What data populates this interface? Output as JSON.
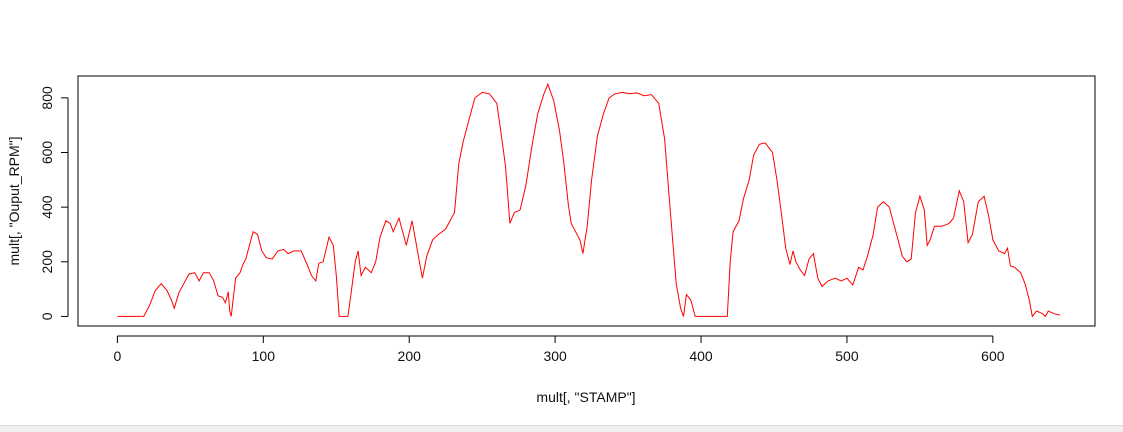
{
  "chart_data": {
    "type": "line",
    "xlabel": "mult[, \"STAMP\"]",
    "ylabel": "mult[, \"Ouput_RPM\"]",
    "xlim": [
      -27,
      670
    ],
    "ylim": [
      -35,
      880
    ],
    "x_ticks": [
      0,
      100,
      200,
      300,
      400,
      500,
      600
    ],
    "y_ticks": [
      0,
      200,
      400,
      600,
      800
    ],
    "grid": false,
    "legend": "none",
    "series_color": "#ff0000",
    "points": [
      [
        0,
        0
      ],
      [
        18,
        0
      ],
      [
        22,
        40
      ],
      [
        26,
        95
      ],
      [
        30,
        120
      ],
      [
        34,
        95
      ],
      [
        37,
        60
      ],
      [
        39,
        30
      ],
      [
        42,
        85
      ],
      [
        46,
        125
      ],
      [
        49,
        155
      ],
      [
        53,
        160
      ],
      [
        56,
        130
      ],
      [
        59,
        160
      ],
      [
        63,
        160
      ],
      [
        66,
        130
      ],
      [
        69,
        75
      ],
      [
        72,
        70
      ],
      [
        74,
        50
      ],
      [
        76,
        90
      ],
      [
        77,
        20
      ],
      [
        78,
        0
      ],
      [
        81,
        140
      ],
      [
        84,
        160
      ],
      [
        86,
        190
      ],
      [
        88,
        210
      ],
      [
        90,
        250
      ],
      [
        93,
        310
      ],
      [
        96,
        300
      ],
      [
        99,
        240
      ],
      [
        102,
        215
      ],
      [
        106,
        210
      ],
      [
        110,
        240
      ],
      [
        114,
        245
      ],
      [
        117,
        230
      ],
      [
        121,
        240
      ],
      [
        126,
        240
      ],
      [
        130,
        190
      ],
      [
        133,
        150
      ],
      [
        136,
        130
      ],
      [
        138,
        195
      ],
      [
        141,
        200
      ],
      [
        145,
        290
      ],
      [
        148,
        260
      ],
      [
        150,
        150
      ],
      [
        152,
        0
      ],
      [
        158,
        0
      ],
      [
        160,
        80
      ],
      [
        163,
        200
      ],
      [
        165,
        240
      ],
      [
        167,
        150
      ],
      [
        170,
        180
      ],
      [
        174,
        160
      ],
      [
        177,
        200
      ],
      [
        180,
        290
      ],
      [
        184,
        350
      ],
      [
        187,
        340
      ],
      [
        189,
        310
      ],
      [
        193,
        360
      ],
      [
        196,
        300
      ],
      [
        198,
        260
      ],
      [
        202,
        350
      ],
      [
        205,
        260
      ],
      [
        207,
        200
      ],
      [
        209,
        140
      ],
      [
        212,
        220
      ],
      [
        216,
        280
      ],
      [
        220,
        300
      ],
      [
        225,
        320
      ],
      [
        229,
        360
      ],
      [
        231,
        380
      ],
      [
        234,
        560
      ],
      [
        237,
        640
      ],
      [
        241,
        720
      ],
      [
        245,
        800
      ],
      [
        250,
        820
      ],
      [
        255,
        815
      ],
      [
        260,
        780
      ],
      [
        264,
        630
      ],
      [
        266,
        550
      ],
      [
        269,
        340
      ],
      [
        272,
        380
      ],
      [
        276,
        390
      ],
      [
        280,
        480
      ],
      [
        284,
        620
      ],
      [
        288,
        740
      ],
      [
        292,
        810
      ],
      [
        295,
        850
      ],
      [
        299,
        790
      ],
      [
        303,
        680
      ],
      [
        306,
        560
      ],
      [
        309,
        410
      ],
      [
        311,
        340
      ],
      [
        314,
        310
      ],
      [
        317,
        280
      ],
      [
        319,
        230
      ],
      [
        322,
        330
      ],
      [
        325,
        500
      ],
      [
        329,
        660
      ],
      [
        333,
        740
      ],
      [
        337,
        800
      ],
      [
        341,
        815
      ],
      [
        346,
        820
      ],
      [
        351,
        815
      ],
      [
        356,
        818
      ],
      [
        361,
        808
      ],
      [
        366,
        812
      ],
      [
        371,
        780
      ],
      [
        375,
        650
      ],
      [
        378,
        450
      ],
      [
        381,
        250
      ],
      [
        383,
        120
      ],
      [
        386,
        30
      ],
      [
        388,
        0
      ],
      [
        390,
        80
      ],
      [
        393,
        60
      ],
      [
        396,
        0
      ],
      [
        418,
        0
      ],
      [
        420,
        200
      ],
      [
        422,
        310
      ],
      [
        426,
        350
      ],
      [
        429,
        430
      ],
      [
        433,
        500
      ],
      [
        436,
        590
      ],
      [
        440,
        630
      ],
      [
        444,
        635
      ],
      [
        449,
        600
      ],
      [
        452,
        500
      ],
      [
        455,
        380
      ],
      [
        458,
        250
      ],
      [
        461,
        190
      ],
      [
        463,
        240
      ],
      [
        465,
        200
      ],
      [
        468,
        170
      ],
      [
        471,
        150
      ],
      [
        474,
        210
      ],
      [
        477,
        230
      ],
      [
        480,
        140
      ],
      [
        483,
        110
      ],
      [
        487,
        130
      ],
      [
        492,
        140
      ],
      [
        496,
        130
      ],
      [
        500,
        140
      ],
      [
        504,
        115
      ],
      [
        508,
        180
      ],
      [
        511,
        170
      ],
      [
        514,
        220
      ],
      [
        518,
        300
      ],
      [
        521,
        400
      ],
      [
        525,
        420
      ],
      [
        529,
        400
      ],
      [
        534,
        300
      ],
      [
        538,
        220
      ],
      [
        541,
        200
      ],
      [
        544,
        210
      ],
      [
        547,
        380
      ],
      [
        550,
        440
      ],
      [
        553,
        390
      ],
      [
        555,
        260
      ],
      [
        557,
        280
      ],
      [
        560,
        330
      ],
      [
        565,
        330
      ],
      [
        570,
        340
      ],
      [
        573,
        360
      ],
      [
        577,
        460
      ],
      [
        580,
        420
      ],
      [
        583,
        270
      ],
      [
        586,
        300
      ],
      [
        590,
        420
      ],
      [
        594,
        440
      ],
      [
        597,
        370
      ],
      [
        600,
        280
      ],
      [
        604,
        240
      ],
      [
        608,
        230
      ],
      [
        610,
        250
      ],
      [
        612,
        185
      ],
      [
        615,
        180
      ],
      [
        619,
        160
      ],
      [
        622,
        120
      ],
      [
        625,
        60
      ],
      [
        627,
        0
      ],
      [
        630,
        20
      ],
      [
        634,
        10
      ],
      [
        636,
        0
      ],
      [
        638,
        20
      ],
      [
        642,
        10
      ],
      [
        646,
        5
      ]
    ]
  }
}
